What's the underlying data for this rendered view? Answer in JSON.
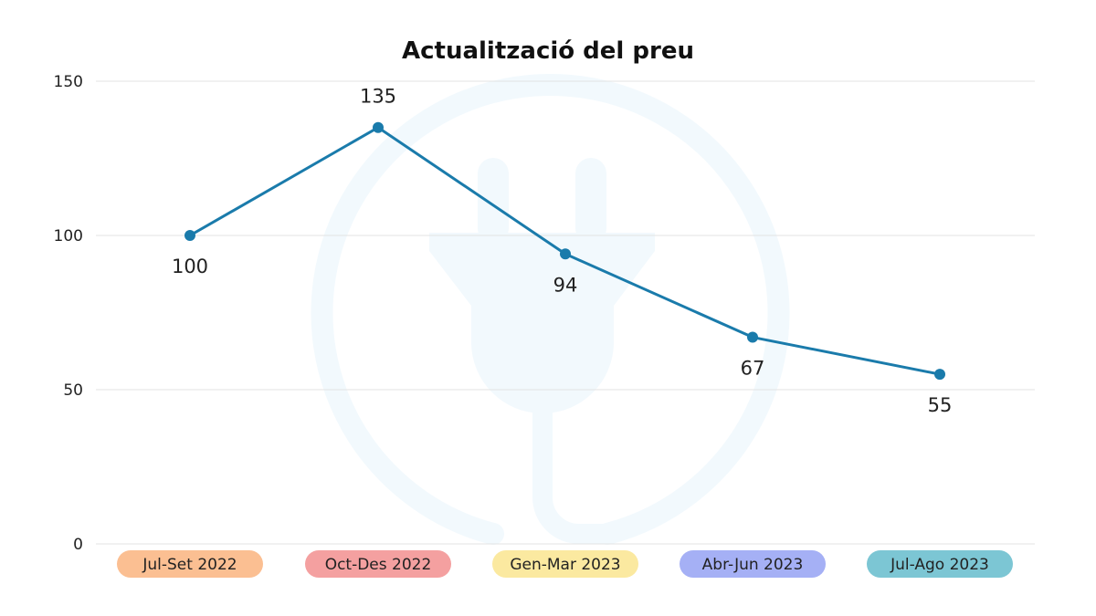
{
  "chart_data": {
    "type": "line",
    "title": "Actualització del preu",
    "xlabel": "",
    "ylabel": "",
    "categories": [
      "Jul-Set 2022",
      "Oct-Des 2022",
      "Gen-Mar 2023",
      "Abr-Jun 2023",
      "Jul-Ago 2023"
    ],
    "series": [
      {
        "values": [
          100,
          135,
          94,
          67,
          55
        ]
      }
    ],
    "ylim": [
      0,
      150
    ],
    "yticks": [
      "0",
      "50",
      "100",
      "150"
    ],
    "grid": true,
    "legend": "none",
    "data_labels": true,
    "background_icon": "power-plug-icon"
  },
  "colors": {
    "line": "#1a7bab",
    "grid": "#e3e3e3",
    "watermark": "#f2f9fd",
    "category_pills": [
      "#fbbf92",
      "#f4a0a0",
      "#fbe9a0",
      "#a5b0f5",
      "#7cc6d4"
    ]
  }
}
